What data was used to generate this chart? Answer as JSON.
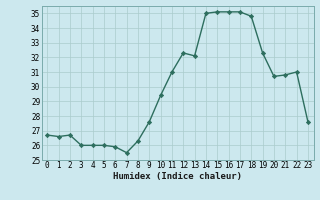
{
  "x_values": [
    0,
    1,
    2,
    3,
    4,
    5,
    6,
    7,
    8,
    9,
    10,
    11,
    12,
    13,
    14,
    15,
    16,
    17,
    18,
    19,
    20,
    21,
    22,
    23
  ],
  "y_values": [
    26.7,
    26.6,
    26.7,
    26.0,
    26.0,
    26.0,
    25.9,
    25.5,
    26.3,
    27.6,
    29.4,
    31.0,
    32.3,
    32.1,
    35.0,
    35.1,
    35.1,
    35.1,
    34.8,
    32.3,
    30.7,
    30.8,
    31.0,
    27.6
  ],
  "xlabel": "Humidex (Indice chaleur)",
  "ylim_min": 25,
  "ylim_max": 35.5,
  "yticks": [
    25,
    26,
    27,
    28,
    29,
    30,
    31,
    32,
    33,
    34,
    35
  ],
  "line_color": "#2d6e5e",
  "marker": "D",
  "marker_size": 2.2,
  "bg_color": "#cce8ee",
  "grid_color": "#aacccc",
  "fig_bg": "#cce8ee",
  "tick_fontsize": 5.5,
  "xlabel_fontsize": 6.5,
  "line_width": 1.0
}
